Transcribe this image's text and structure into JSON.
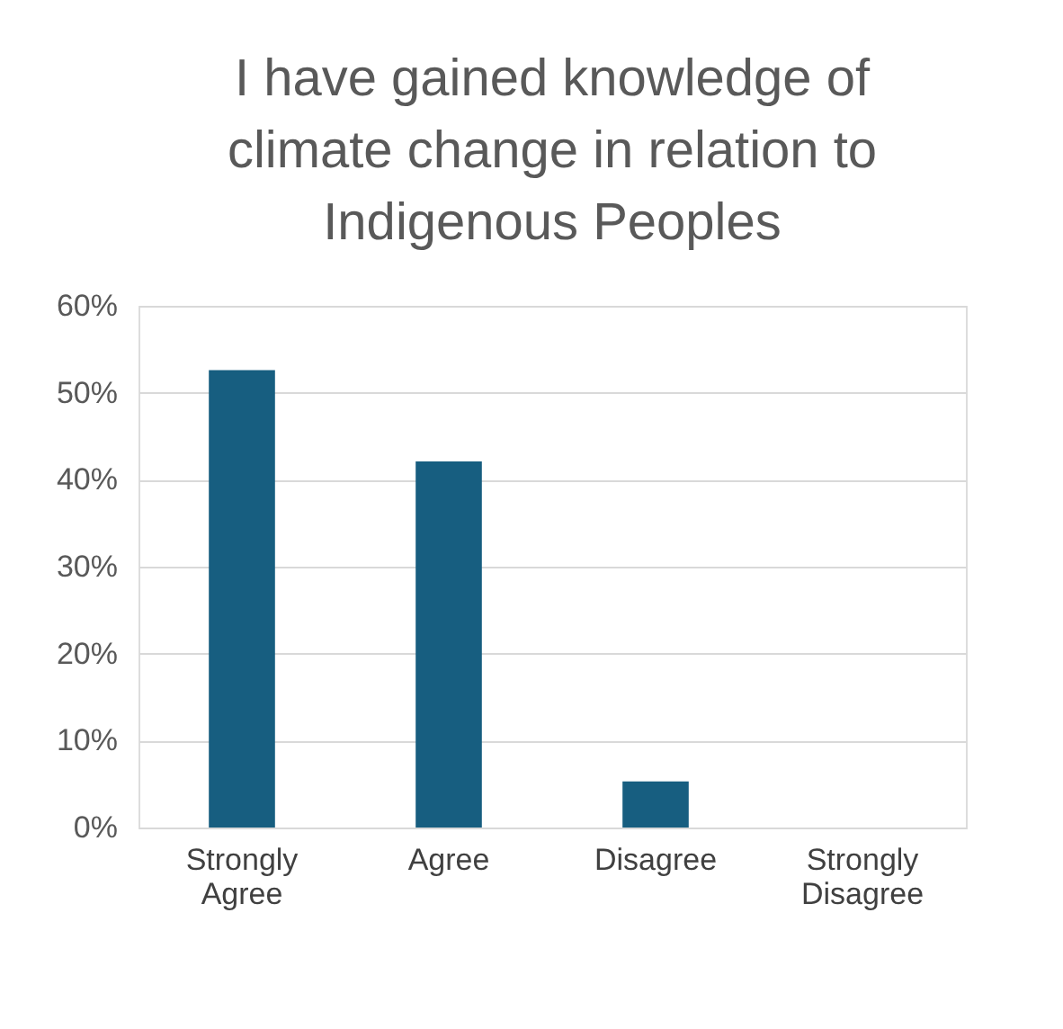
{
  "chart_data": {
    "type": "bar",
    "title": "I have gained knowledge of climate change in relation to Indigenous Peoples",
    "categories": [
      "Strongly Agree",
      "Agree",
      "Disagree",
      "Strongly Disagree",
      null
    ],
    "values": [
      52.6,
      42.1,
      5.3,
      0,
      null
    ],
    "color": "#175e80",
    "ylim": [
      0,
      60
    ],
    "yticks": [
      {
        "value": 0,
        "label": "0%"
      },
      {
        "value": 10,
        "label": "10%"
      },
      {
        "value": 20,
        "label": "20%"
      },
      {
        "value": 30,
        "label": "30%"
      },
      {
        "value": 40,
        "label": "40%"
      },
      {
        "value": 50,
        "label": "50%"
      },
      {
        "value": 60,
        "label": "60%"
      }
    ],
    "grid": "y"
  }
}
